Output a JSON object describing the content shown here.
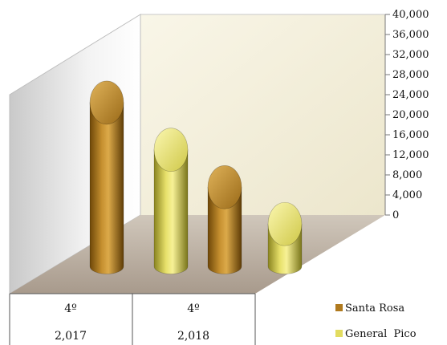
{
  "chart_data": {
    "type": "bar",
    "categories": [
      {
        "line1": "4º",
        "line2": "2,017"
      },
      {
        "line1": "4º",
        "line2": "2,018"
      }
    ],
    "series": [
      {
        "name": "Santa Rosa",
        "values": [
          22000,
          8900
        ],
        "color": "#b07a1e"
      },
      {
        "name": "General  Pico",
        "values": [
          14700,
          3200
        ],
        "color": "#e2dc60"
      }
    ],
    "ylim": [
      0,
      40000
    ],
    "y_ticks": [
      "0",
      "4,000",
      "8,000",
      "12,000",
      "16,000",
      "20,000",
      "24,000",
      "28,000",
      "32,000",
      "36,000",
      "40,000"
    ],
    "grid": false,
    "legend_position": "bottom-right",
    "style": "3d-cylinder"
  }
}
